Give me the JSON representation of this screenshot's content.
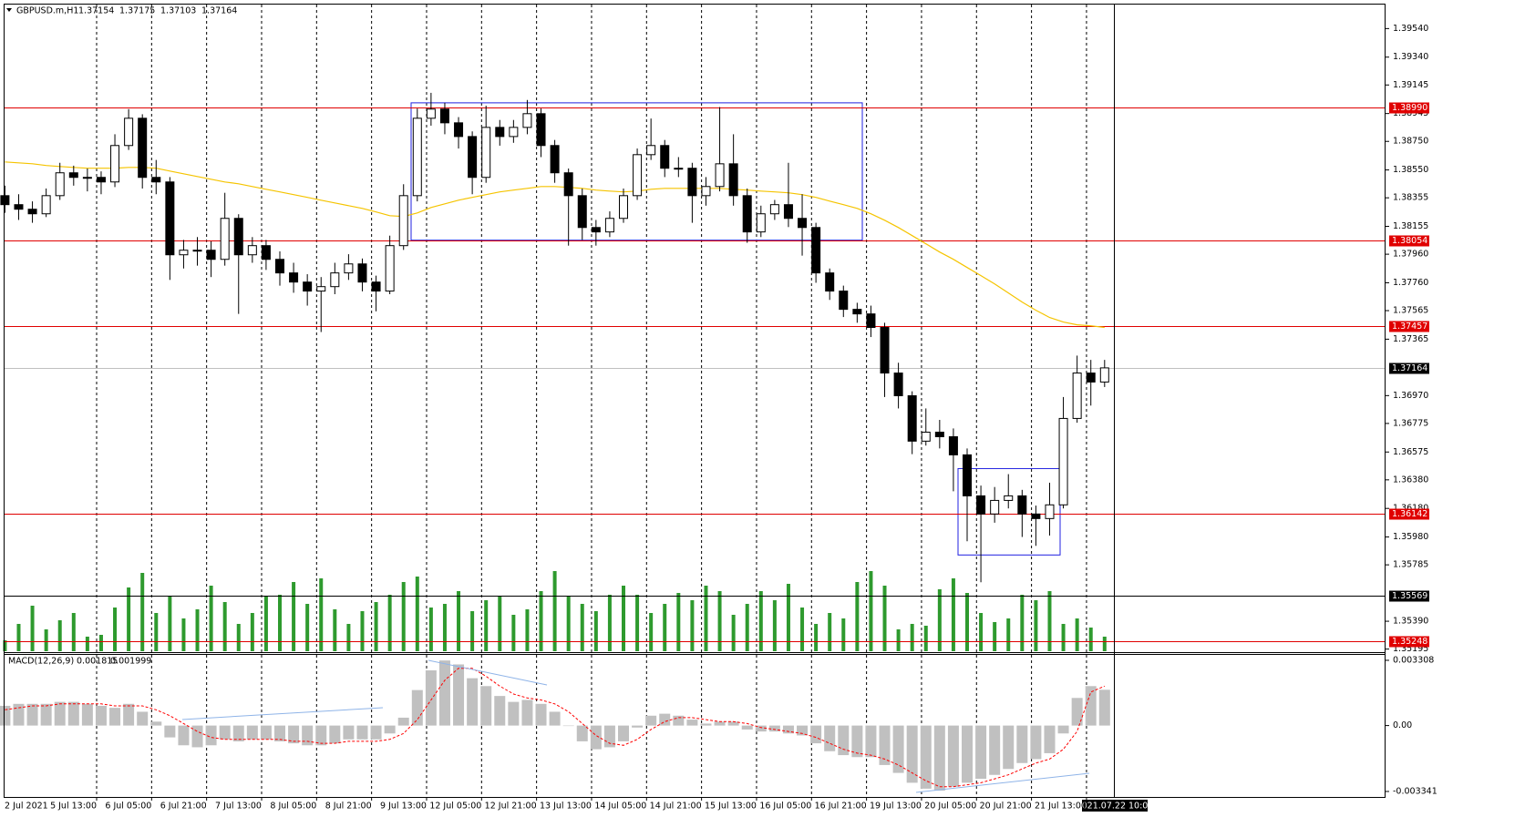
{
  "chart_data": {
    "type": "candlestick",
    "symbol": "GBPUSD.m,H1",
    "last_bar": [
      1.37154,
      1.37175,
      1.37103,
      1.37164
    ],
    "up_color": "#ffffff",
    "down_color": "#000000",
    "outline_color": "#000000",
    "ylim": [
      1.3518,
      1.3974
    ],
    "yticks": [
      {
        "value": 1.3954,
        "label": "1.39540"
      },
      {
        "value": 1.3934,
        "label": "1.39340"
      },
      1.39145,
      1.38945,
      {
        "value": 1.3875,
        "label": "1.38750"
      },
      {
        "value": 1.3855,
        "label": "1.38550"
      },
      1.38355,
      1.38155,
      {
        "value": 1.3796,
        "label": "1.37960"
      },
      {
        "value": 1.3776,
        "label": "1.37760"
      },
      1.37565,
      1.37365,
      {
        "value": 1.3697,
        "label": "1.36970"
      },
      1.36775,
      1.36575,
      {
        "value": 1.3638,
        "label": "1.36380"
      },
      {
        "value": 1.3618,
        "label": "1.36180"
      },
      {
        "value": 1.3598,
        "label": "1.35980"
      },
      1.35785,
      {
        "value": 1.3539,
        "label": "1.35390"
      },
      1.35195
    ],
    "time_labels": [
      "2 Jul 2021",
      "5 Jul 13:00",
      "6 Jul 05:00",
      "6 Jul 21:00",
      "7 Jul 13:00",
      "8 Jul 05:00",
      "8 Jul 21:00",
      "9 Jul 13:00",
      "12 Jul 05:00",
      "12 Jul 21:00",
      "13 Jul 13:00",
      "14 Jul 05:00",
      "14 Jul 21:00",
      "15 Jul 13:00",
      "16 Jul 05:00",
      "16 Jul 21:00",
      "19 Jul 13:00",
      "20 Jul 05:00",
      "20 Jul 21:00",
      "21 Jul 13:00"
    ],
    "cursor_time": "2021.07.22 10:00",
    "candles": [
      [
        1.3837,
        1.3844,
        1.3825,
        1.38307
      ],
      [
        1.38307,
        1.3838,
        1.382,
        1.38275
      ],
      [
        1.38275,
        1.3833,
        1.3818,
        1.38243
      ],
      [
        1.38243,
        1.3842,
        1.3822,
        1.3837
      ],
      [
        1.3837,
        1.386,
        1.3834,
        1.3853
      ],
      [
        1.3853,
        1.3858,
        1.3844,
        1.38498
      ],
      [
        1.38498,
        1.3856,
        1.384,
        1.38498
      ],
      [
        1.38498,
        1.3854,
        1.3838,
        1.38466
      ],
      [
        1.38466,
        1.388,
        1.3843,
        1.38721
      ],
      [
        1.38721,
        1.38976,
        1.3869,
        1.38912
      ],
      [
        1.38912,
        1.3894,
        1.3842,
        1.38498
      ],
      [
        1.38498,
        1.3862,
        1.3838,
        1.38466
      ],
      [
        1.38466,
        1.385,
        1.3778,
        1.37956
      ],
      [
        1.37956,
        1.3806,
        1.3786,
        1.37988
      ],
      [
        1.37988,
        1.3808,
        1.3788,
        1.37988
      ],
      [
        1.37988,
        1.3805,
        1.378,
        1.37924
      ],
      [
        1.37924,
        1.3839,
        1.3788,
        1.38211
      ],
      [
        1.38211,
        1.3824,
        1.37542,
        1.37956
      ],
      [
        1.37956,
        1.3808,
        1.379,
        1.3802
      ],
      [
        1.3802,
        1.3806,
        1.3785,
        1.37924
      ],
      [
        1.37924,
        1.3798,
        1.3774,
        1.37829
      ],
      [
        1.37829,
        1.379,
        1.3769,
        1.37765
      ],
      [
        1.37765,
        1.3782,
        1.376,
        1.37702
      ],
      [
        1.37702,
        1.378,
        1.37415,
        1.37733
      ],
      [
        1.37733,
        1.379,
        1.3768,
        1.37829
      ],
      [
        1.37829,
        1.3796,
        1.3778,
        1.37892
      ],
      [
        1.37892,
        1.3793,
        1.377,
        1.37765
      ],
      [
        1.37765,
        1.3781,
        1.3756,
        1.37702
      ],
      [
        1.37702,
        1.3809,
        1.3768,
        1.3802
      ],
      [
        1.3802,
        1.3845,
        1.3799,
        1.3837
      ],
      [
        1.3837,
        1.3898,
        1.3833,
        1.38912
      ],
      [
        1.38912,
        1.3909,
        1.3886,
        1.38976
      ],
      [
        1.38976,
        1.3902,
        1.388,
        1.3888
      ],
      [
        1.3888,
        1.3892,
        1.387,
        1.38784
      ],
      [
        1.38784,
        1.3882,
        1.3838,
        1.38498
      ],
      [
        1.38498,
        1.39,
        1.3846,
        1.38848
      ],
      [
        1.38848,
        1.389,
        1.3872,
        1.38784
      ],
      [
        1.38784,
        1.389,
        1.3874,
        1.38848
      ],
      [
        1.38848,
        1.3904,
        1.388,
        1.38944
      ],
      [
        1.38944,
        1.3898,
        1.3864,
        1.38721
      ],
      [
        1.38721,
        1.3876,
        1.3846,
        1.3853
      ],
      [
        1.3853,
        1.3856,
        1.3802,
        1.3837
      ],
      [
        1.3837,
        1.3842,
        1.3806,
        1.38147
      ],
      [
        1.38147,
        1.382,
        1.3802,
        1.38116
      ],
      [
        1.38116,
        1.3826,
        1.3808,
        1.38211
      ],
      [
        1.38211,
        1.3842,
        1.3818,
        1.3837
      ],
      [
        1.3837,
        1.387,
        1.3834,
        1.38657
      ],
      [
        1.38657,
        1.3891,
        1.3862,
        1.38721
      ],
      [
        1.38721,
        1.3876,
        1.385,
        1.38562
      ],
      [
        1.38562,
        1.3864,
        1.385,
        1.38562
      ],
      [
        1.38562,
        1.386,
        1.3818,
        1.3837
      ],
      [
        1.3837,
        1.385,
        1.383,
        1.38434
      ],
      [
        1.38434,
        1.3899,
        1.384,
        1.38593
      ],
      [
        1.38593,
        1.388,
        1.383,
        1.3837
      ],
      [
        1.3837,
        1.3842,
        1.3804,
        1.38116
      ],
      [
        1.38116,
        1.383,
        1.3808,
        1.38243
      ],
      [
        1.38243,
        1.3834,
        1.382,
        1.38307
      ],
      [
        1.38307,
        1.386,
        1.3815,
        1.38211
      ],
      [
        1.38211,
        1.3838,
        1.3795,
        1.38147
      ],
      [
        1.38147,
        1.3818,
        1.3776,
        1.37829
      ],
      [
        1.37829,
        1.3786,
        1.3764,
        1.37702
      ],
      [
        1.37702,
        1.3774,
        1.3752,
        1.37574
      ],
      [
        1.37574,
        1.3762,
        1.3748,
        1.37542
      ],
      [
        1.37542,
        1.376,
        1.3738,
        1.37447
      ],
      [
        1.37447,
        1.3748,
        1.3696,
        1.37128
      ],
      [
        1.37128,
        1.372,
        1.3688,
        1.36969
      ],
      [
        1.36969,
        1.37,
        1.3656,
        1.36651
      ],
      [
        1.36651,
        1.3688,
        1.3662,
        1.36714
      ],
      [
        1.36714,
        1.368,
        1.366,
        1.36682
      ],
      [
        1.36682,
        1.3674,
        1.363,
        1.36555
      ],
      [
        1.36555,
        1.366,
        1.3595,
        1.36268
      ],
      [
        1.36268,
        1.3634,
        1.35663,
        1.36141
      ],
      [
        1.36141,
        1.3633,
        1.3608,
        1.36236
      ],
      [
        1.36236,
        1.3642,
        1.3618,
        1.36268
      ],
      [
        1.36268,
        1.3631,
        1.3598,
        1.36141
      ],
      [
        1.36141,
        1.362,
        1.35918,
        1.36109
      ],
      [
        1.36109,
        1.3636,
        1.3599,
        1.36205
      ],
      [
        1.36205,
        1.3696,
        1.3618,
        1.3681
      ],
      [
        1.3681,
        1.3725,
        1.3678,
        1.37128
      ],
      [
        1.37128,
        1.3722,
        1.369,
        1.37065
      ],
      [
        1.37065,
        1.3722,
        1.3703,
        1.37164
      ]
    ],
    "ma": {
      "color": "#f5c400",
      "values": [
        1.38606,
        1.386,
        1.38593,
        1.38581,
        1.38574,
        1.38568,
        1.38562,
        1.38562,
        1.38562,
        1.38568,
        1.38568,
        1.38562,
        1.38542,
        1.38523,
        1.38504,
        1.38485,
        1.38466,
        1.38453,
        1.38434,
        1.38415,
        1.38396,
        1.38377,
        1.38358,
        1.38338,
        1.38319,
        1.383,
        1.38281,
        1.38256,
        1.3823,
        1.38224,
        1.38249,
        1.38287,
        1.38313,
        1.38338,
        1.38358,
        1.38377,
        1.38396,
        1.38409,
        1.38421,
        1.38434,
        1.38434,
        1.38428,
        1.38421,
        1.38409,
        1.38402,
        1.38396,
        1.38402,
        1.38415,
        1.38421,
        1.38421,
        1.38421,
        1.38421,
        1.38421,
        1.38415,
        1.38409,
        1.38402,
        1.38396,
        1.3839,
        1.38377,
        1.38358,
        1.38332,
        1.38307,
        1.38281,
        1.38243,
        1.38198,
        1.38147,
        1.3809,
        1.38033,
        1.37975,
        1.37924,
        1.37867,
        1.3781,
        1.37752,
        1.37689,
        1.37625,
        1.37568,
        1.37517,
        1.37485,
        1.37466,
        1.37459,
        1.37447
      ]
    },
    "volume": {
      "color": "#2e9a2e",
      "values": [
        600,
        1500,
        2500,
        1200,
        1700,
        2100,
        800,
        900,
        2400,
        3500,
        4300,
        2100,
        3000,
        1800,
        2300,
        3600,
        2700,
        1500,
        2100,
        3000,
        3100,
        3800,
        2600,
        4000,
        2300,
        1500,
        2200,
        2700,
        3100,
        3800,
        4100,
        2400,
        2600,
        3300,
        2200,
        2800,
        3000,
        2000,
        2300,
        3300,
        4400,
        3000,
        2600,
        2200,
        3100,
        3600,
        3100,
        2100,
        2600,
        3200,
        2800,
        3600,
        3300,
        2000,
        2600,
        3300,
        2800,
        3700,
        2400,
        1500,
        2100,
        1800,
        3800,
        4400,
        3600,
        1200,
        1500,
        1400,
        3400,
        4000,
        3200,
        2100,
        1600,
        1800,
        3100,
        2800,
        3300,
        1500,
        1800,
        1300,
        800
      ]
    },
    "levels": [
      {
        "value": 1.3899,
        "label": "1.38990",
        "color": "#e00000"
      },
      {
        "value": 1.38054,
        "label": "1.38054",
        "color": "#e00000"
      },
      {
        "value": 1.37457,
        "label": "1.37457",
        "color": "#e00000"
      },
      {
        "value": 1.37164,
        "label": "1.37164",
        "color": "#000000"
      },
      {
        "value": 1.36142,
        "label": "1.36142",
        "color": "#e00000"
      },
      {
        "value": 1.35569,
        "label": "1.35569",
        "color": "#000000"
      },
      {
        "value": 1.35248,
        "label": "1.35248",
        "color": "#e00000"
      }
    ],
    "zones": [
      {
        "top": 1.3902,
        "bottom": 1.38058,
        "color": "#2020e0"
      },
      {
        "top": 1.36459,
        "bottom": 1.35854,
        "color": "#2020e0"
      }
    ],
    "macd": {
      "title": "MACD(12,26,9)",
      "ylim": [
        -0.00362,
        0.00363
      ],
      "yticks": [
        0.003308,
        {
          "value": 0,
          "label": "0.00"
        },
        -0.003341
      ],
      "main_color": "#c0c0c0",
      "signal_color": "#ff0000",
      "main": [
        0.001,
        0.0011,
        0.0011,
        0.0011,
        0.0012,
        0.0012,
        0.0011,
        0.001,
        0.0009,
        0.0011,
        0.0007,
        0.0002,
        -0.0006,
        -0.001,
        -0.0011,
        -0.001,
        -0.0007,
        -0.0008,
        -0.0007,
        -0.0007,
        -0.0008,
        -0.0009,
        -0.001,
        -0.001,
        -0.0009,
        -0.0007,
        -0.0007,
        -0.0007,
        -0.0004,
        0.0004,
        0.0018,
        0.0028,
        0.0033,
        0.0031,
        0.0024,
        0.002,
        0.0015,
        0.0012,
        0.0013,
        0.0011,
        0.0007,
        0.0,
        -0.0008,
        -0.0012,
        -0.0011,
        -0.0008,
        -0.0001,
        0.0005,
        0.0006,
        0.0005,
        0.0003,
        0.0001,
        0.0002,
        0.0002,
        -0.0002,
        -0.0003,
        -0.0003,
        -0.0004,
        -0.0005,
        -0.0009,
        -0.0013,
        -0.0015,
        -0.0016,
        -0.0016,
        -0.002,
        -0.0024,
        -0.0029,
        -0.0032,
        -0.0033,
        -0.0031,
        -0.0029,
        -0.0027,
        -0.0025,
        -0.0022,
        -0.0019,
        -0.0017,
        -0.0014,
        -0.0004,
        0.0014,
        0.002,
        0.001815
      ],
      "signal": [
        0.0008,
        0.0009,
        0.001,
        0.001,
        0.0011,
        0.0011,
        0.0011,
        0.0011,
        0.001,
        0.001,
        0.001,
        0.0008,
        0.0005,
        0.0001,
        -0.0003,
        -0.0006,
        -0.0007,
        -0.0007,
        -0.0007,
        -0.0007,
        -0.0007,
        -0.0008,
        -0.0008,
        -0.0009,
        -0.0009,
        -0.0008,
        -0.0008,
        -0.0008,
        -0.0007,
        -0.0004,
        0.0003,
        0.0013,
        0.0023,
        0.0029,
        0.0029,
        0.0025,
        0.002,
        0.0016,
        0.0014,
        0.0013,
        0.0011,
        0.0007,
        0.0001,
        -0.0005,
        -0.0009,
        -0.001,
        -0.0007,
        -0.0002,
        0.0002,
        0.0004,
        0.0004,
        0.0003,
        0.0002,
        0.0002,
        0.0001,
        -0.0001,
        -0.0002,
        -0.0003,
        -0.0004,
        -0.0006,
        -0.0009,
        -0.0012,
        -0.0014,
        -0.0015,
        -0.0017,
        -0.002,
        -0.0024,
        -0.0028,
        -0.0031,
        -0.0031,
        -0.003,
        -0.0029,
        -0.0027,
        -0.0025,
        -0.0022,
        -0.0019,
        -0.0017,
        -0.0012,
        -0.0003,
        0.0017,
        0.001999
      ]
    }
  }
}
